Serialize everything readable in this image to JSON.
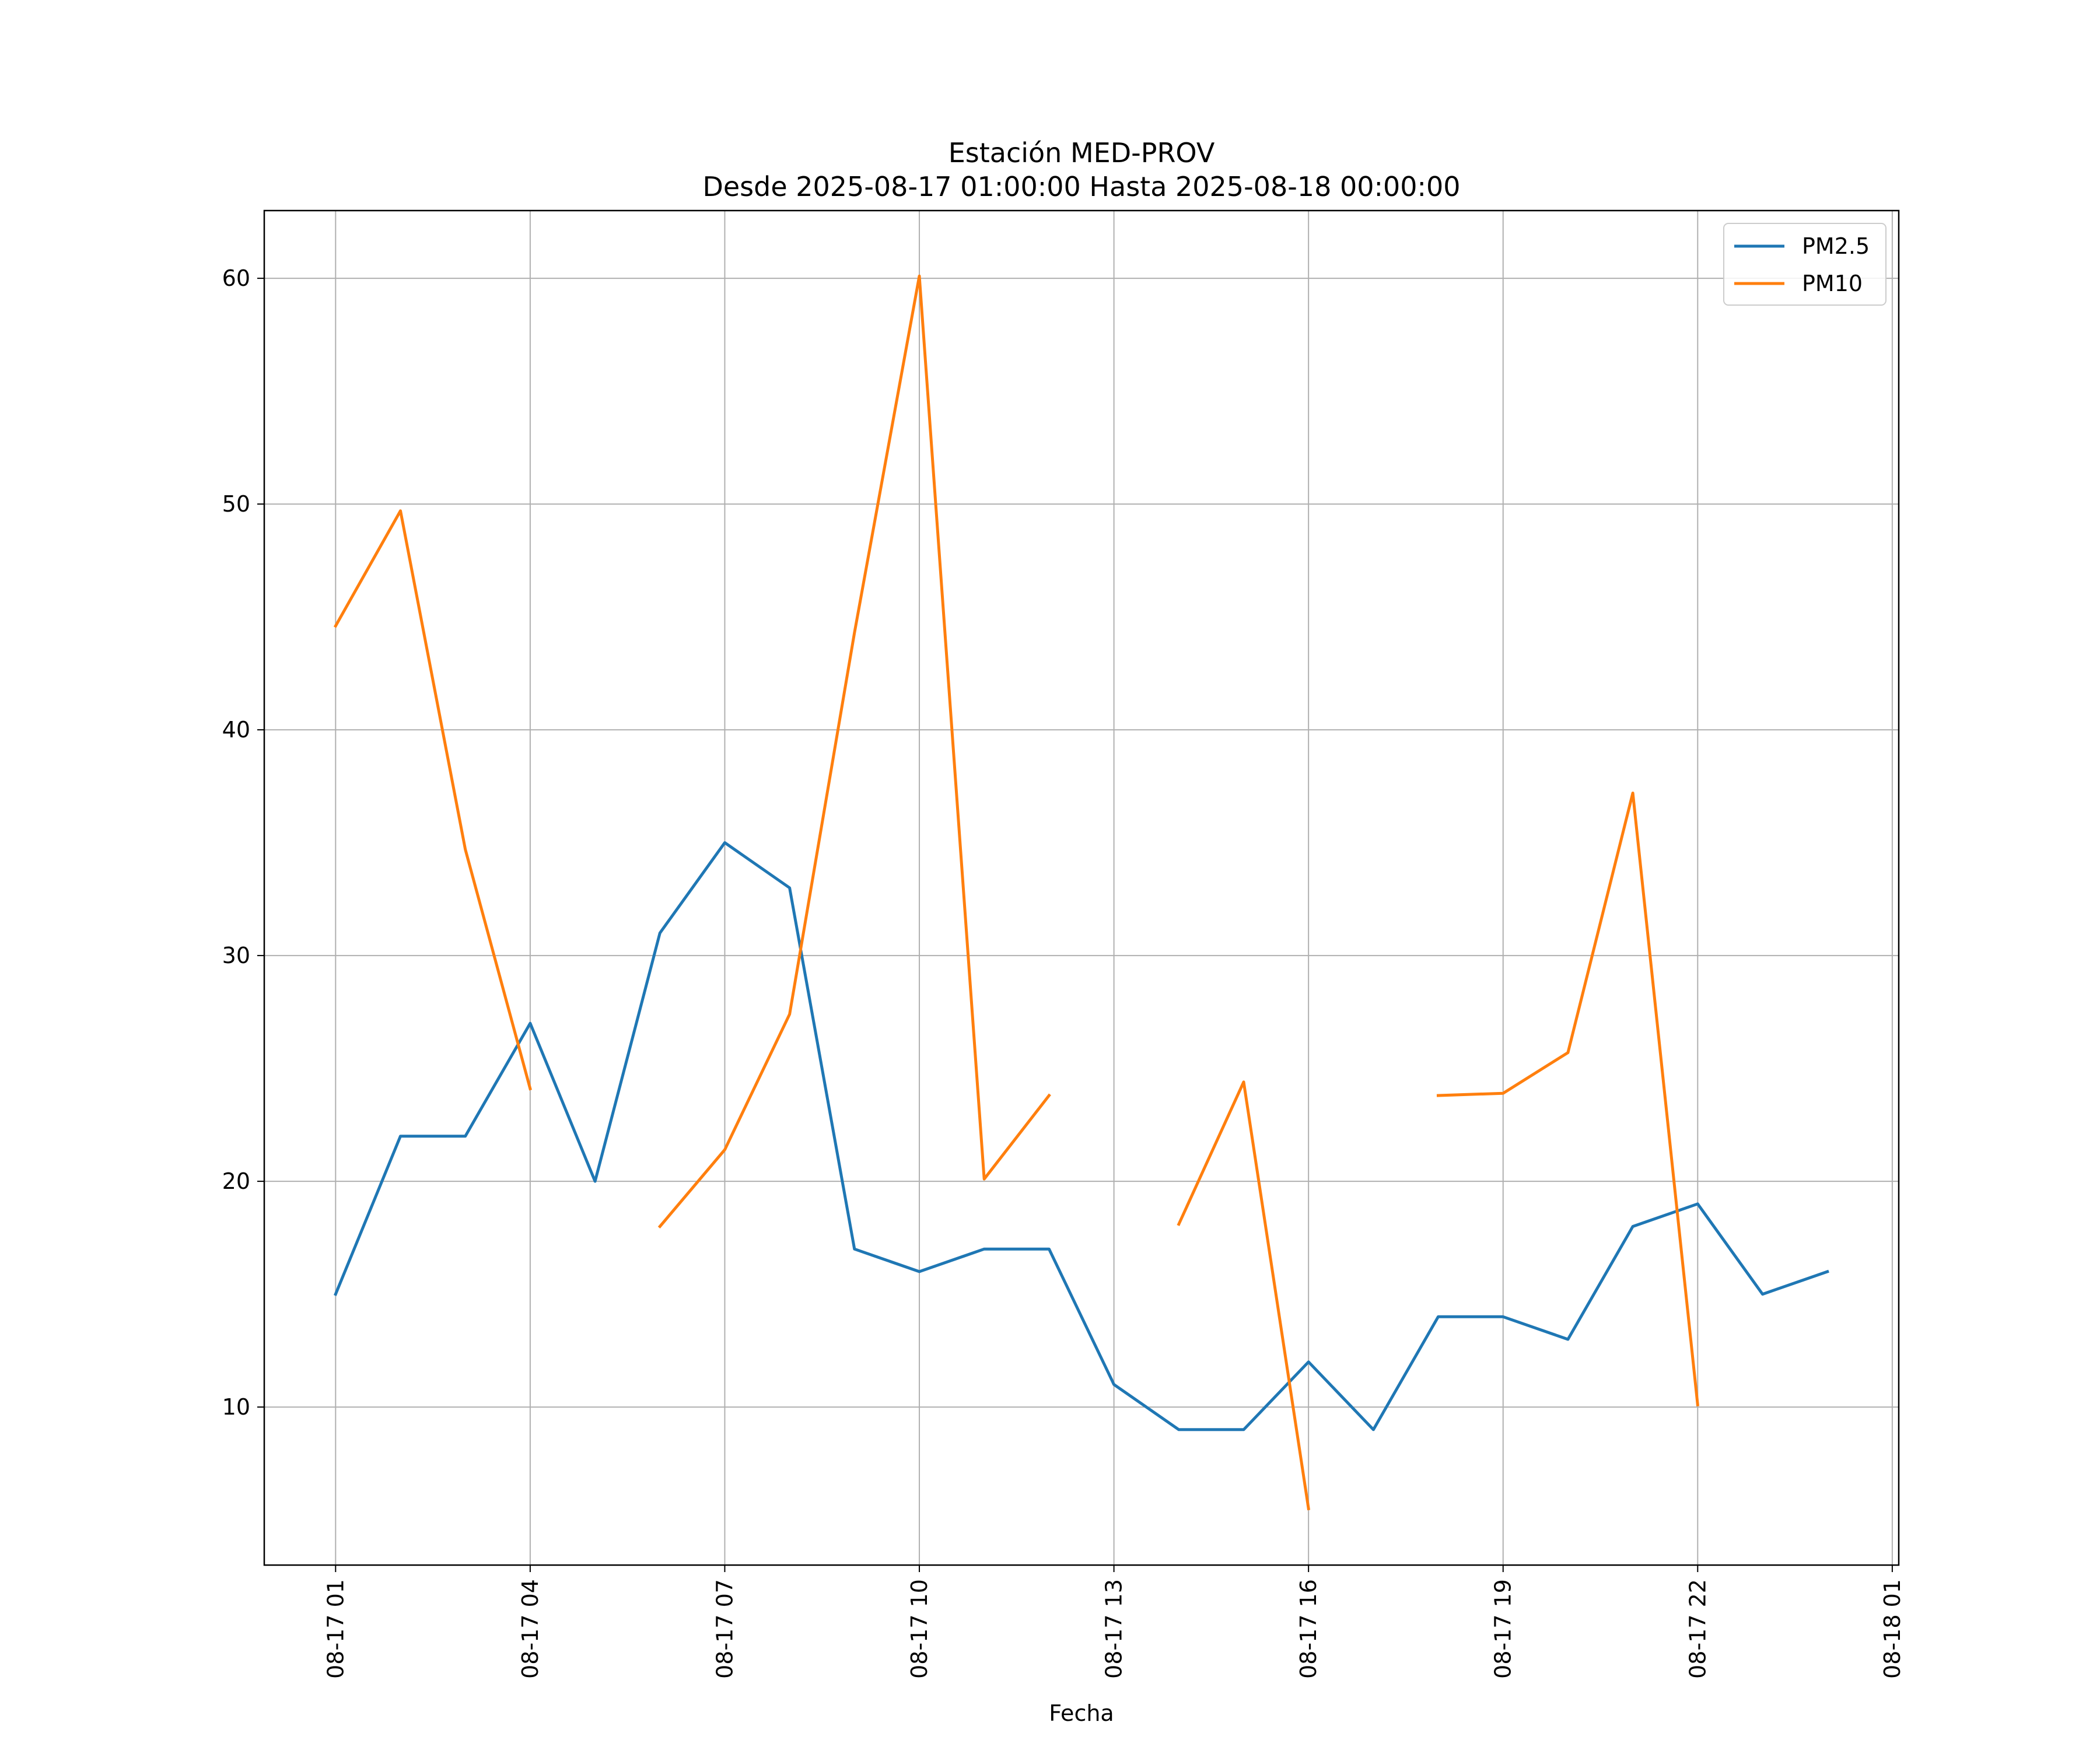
{
  "chart_data": {
    "type": "line",
    "title_line1": "Estación MED-PROV",
    "title_line2": "Desde 2025-08-17 01:00:00 Hasta 2025-08-18 00:00:00",
    "xlabel": "Fecha",
    "ylabel": "",
    "x_hours": [
      1,
      2,
      3,
      4,
      5,
      6,
      7,
      8,
      9,
      10,
      11,
      12,
      13,
      14,
      15,
      16,
      17,
      18,
      19,
      20,
      21,
      22,
      23,
      24
    ],
    "xlim": [
      -0.1,
      25.1
    ],
    "ylim": [
      3,
      63
    ],
    "x_ticks": [
      {
        "hour": 1,
        "label": "08-17 01"
      },
      {
        "hour": 4,
        "label": "08-17 04"
      },
      {
        "hour": 7,
        "label": "08-17 07"
      },
      {
        "hour": 10,
        "label": "08-17 10"
      },
      {
        "hour": 13,
        "label": "08-17 13"
      },
      {
        "hour": 16,
        "label": "08-17 16"
      },
      {
        "hour": 19,
        "label": "08-17 19"
      },
      {
        "hour": 22,
        "label": "08-17 22"
      },
      {
        "hour": 25,
        "label": "08-18 01"
      }
    ],
    "y_ticks": [
      10,
      20,
      30,
      40,
      50,
      60
    ],
    "grid": true,
    "legend_position": "top-right",
    "series": [
      {
        "name": "PM2.5",
        "color": "#1f77b4",
        "values": [
          15,
          22,
          22,
          27,
          20,
          31,
          35,
          33,
          17,
          16,
          17,
          17,
          11,
          9,
          9,
          12,
          9,
          14,
          14,
          13,
          18,
          19,
          15,
          16
        ]
      },
      {
        "name": "PM10",
        "color": "#ff7f0e",
        "values": [
          44.6,
          49.7,
          34.7,
          24.1,
          null,
          18.0,
          21.4,
          27.4,
          44.3,
          60.1,
          20.1,
          23.8,
          null,
          18.1,
          24.4,
          5.5,
          null,
          23.8,
          23.9,
          25.7,
          37.2,
          10.1,
          null,
          null
        ]
      }
    ]
  }
}
